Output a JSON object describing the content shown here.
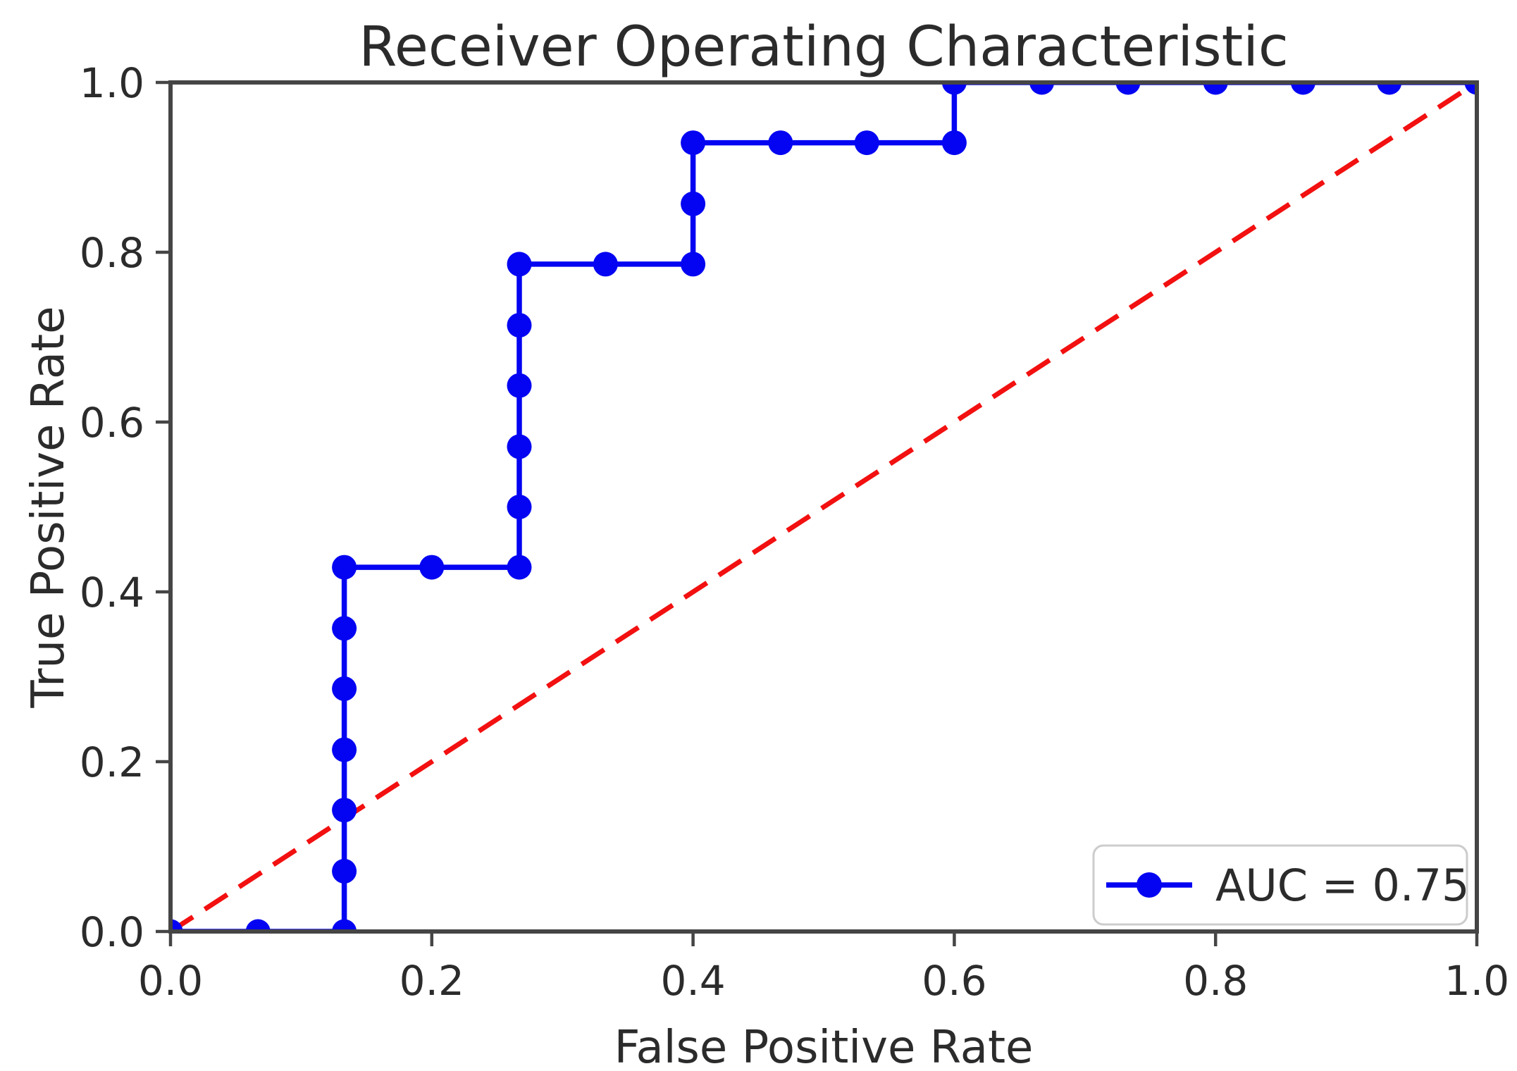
{
  "figure": {
    "background": "#ffffff"
  },
  "style": {
    "curve_color": "#0404f2",
    "diagonal_color": "#f21010",
    "text_color": "#2b2b2b",
    "spine_color": "#454545",
    "legend_border_color": "#cccccc",
    "legend_background": "#ffffff"
  },
  "chart_data": {
    "type": "line",
    "title": "Receiver Operating Characteristic",
    "xlabel": "False Positive Rate",
    "ylabel": "True Positive Rate",
    "xlim": [
      0.0,
      1.0
    ],
    "ylim": [
      0.0,
      1.0
    ],
    "grid": false,
    "x_ticks": [
      "0.0",
      "0.2",
      "0.4",
      "0.6",
      "0.8",
      "1.0"
    ],
    "y_ticks": [
      "0.0",
      "0.2",
      "0.4",
      "0.6",
      "0.8",
      "1.0"
    ],
    "auc": 0.75,
    "legend": {
      "location": "lower right",
      "entries": [
        {
          "label": "AUC = 0.75",
          "color": "#0404f2",
          "marker": "circle",
          "linestyle": "solid"
        }
      ]
    },
    "series": [
      {
        "name": "chance-diagonal",
        "color": "#f21010",
        "linestyle": "dashed",
        "marker": "none",
        "points": [
          [
            0.0,
            0.0
          ],
          [
            1.0,
            1.0
          ]
        ]
      },
      {
        "name": "roc-curve",
        "color": "#0404f2",
        "linestyle": "solid",
        "marker": "circle",
        "points": [
          [
            0.0,
            0.0
          ],
          [
            0.067,
            0.0
          ],
          [
            0.133,
            0.0
          ],
          [
            0.133,
            0.071
          ],
          [
            0.133,
            0.143
          ],
          [
            0.133,
            0.214
          ],
          [
            0.133,
            0.286
          ],
          [
            0.133,
            0.357
          ],
          [
            0.133,
            0.429
          ],
          [
            0.2,
            0.429
          ],
          [
            0.267,
            0.429
          ],
          [
            0.267,
            0.5
          ],
          [
            0.267,
            0.571
          ],
          [
            0.267,
            0.643
          ],
          [
            0.267,
            0.714
          ],
          [
            0.267,
            0.786
          ],
          [
            0.333,
            0.786
          ],
          [
            0.4,
            0.786
          ],
          [
            0.4,
            0.857
          ],
          [
            0.4,
            0.929
          ],
          [
            0.467,
            0.929
          ],
          [
            0.533,
            0.929
          ],
          [
            0.6,
            0.929
          ],
          [
            0.6,
            1.0
          ],
          [
            0.667,
            1.0
          ],
          [
            0.733,
            1.0
          ],
          [
            0.8,
            1.0
          ],
          [
            0.867,
            1.0
          ],
          [
            0.933,
            1.0
          ],
          [
            1.0,
            1.0
          ]
        ]
      }
    ]
  }
}
